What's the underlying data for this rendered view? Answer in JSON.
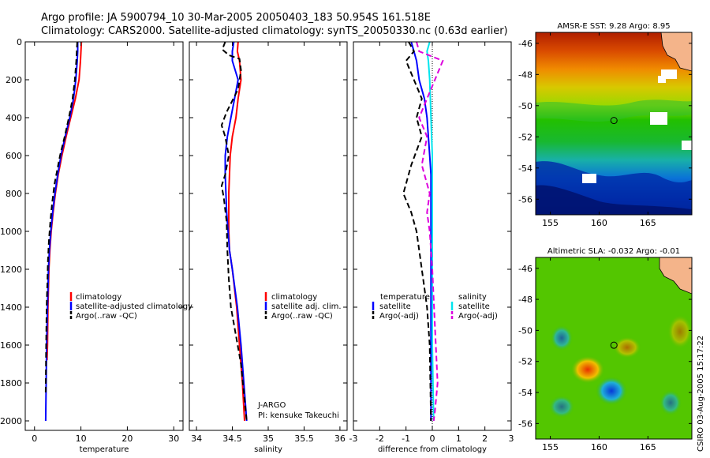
{
  "header": {
    "line1": "Argo profile: JA 5900794_10 30-Mar-2005 20050403_183 50.954S 161.518E",
    "line2": "Climatology: CARS2000. Satellite-adjusted climatology: synTS_20050330.nc (0.63d earlier)"
  },
  "colors": {
    "climatology": "#ff0000",
    "satellite": "#0000ff",
    "argo": "#000000",
    "salinity_sat": "#00e5ee",
    "salinity_argo": "#dd00dd"
  },
  "chart_data": [
    {
      "type": "line",
      "name": "temperature-profile",
      "xlabel": "temperature",
      "xlim": [
        -2,
        32
      ],
      "ylim": [
        0,
        2050
      ],
      "xticks": [
        0,
        10,
        20,
        30
      ],
      "yticks": [
        0,
        200,
        400,
        600,
        800,
        1000,
        1200,
        1400,
        1600,
        1800,
        2000
      ],
      "yaxis_reversed": true,
      "legend": [
        "climatology",
        "satellite-adjusted climatology",
        "Argo(..raw -QC)"
      ],
      "series": [
        {
          "name": "climatology",
          "color": "#ff0000",
          "dash": "",
          "x": [
            10.1,
            10.0,
            9.9,
            9.6,
            8.8,
            7.8,
            6.8,
            5.9,
            5.1,
            4.5,
            4.0,
            3.6,
            3.3,
            3.1,
            2.9,
            2.8,
            2.7
          ],
          "y": [
            0,
            50,
            100,
            200,
            300,
            400,
            500,
            600,
            700,
            800,
            900,
            1000,
            1100,
            1200,
            1400,
            1600,
            1680
          ]
        },
        {
          "name": "satellite-adjusted climatology",
          "color": "#0000ff",
          "dash": "",
          "x": [
            9.3,
            9.3,
            9.2,
            8.9,
            8.4,
            7.6,
            6.6,
            5.7,
            5.0,
            4.4,
            3.9,
            3.5,
            3.2,
            3.0,
            2.8,
            2.6,
            2.5,
            2.4
          ],
          "y": [
            0,
            50,
            100,
            200,
            300,
            400,
            500,
            600,
            700,
            800,
            900,
            1000,
            1100,
            1200,
            1400,
            1600,
            1800,
            2000
          ]
        },
        {
          "name": "Argo(..raw -QC)",
          "color": "#000000",
          "dash": "7,4",
          "x": [
            9.2,
            9.1,
            9.0,
            8.7,
            8.2,
            7.4,
            6.5,
            5.5,
            4.3,
            3.8,
            3.4,
            3.1,
            2.9,
            2.8,
            2.6,
            2.5,
            2.4
          ],
          "y": [
            0,
            50,
            100,
            200,
            300,
            400,
            500,
            600,
            750,
            850,
            950,
            1050,
            1150,
            1250,
            1400,
            1600,
            1850
          ]
        }
      ]
    },
    {
      "type": "line",
      "name": "salinity-profile",
      "xlabel": "salinity",
      "xlim": [
        33.9,
        36.1
      ],
      "ylim": [
        0,
        2050
      ],
      "xticks": [
        34,
        34.5,
        35,
        35.5,
        36
      ],
      "yaxis_reversed": true,
      "legend": [
        "climatology",
        "satellite adj. clim.",
        "Argo(..raw -QC)"
      ],
      "series": [
        {
          "name": "climatology",
          "color": "#ff0000",
          "dash": "",
          "x": [
            34.58,
            34.57,
            34.6,
            34.62,
            34.58,
            34.55,
            34.5,
            34.47,
            34.46,
            34.45,
            34.45,
            34.45,
            34.46,
            34.5,
            34.56,
            34.6,
            34.64,
            34.67
          ],
          "y": [
            0,
            50,
            100,
            200,
            300,
            400,
            500,
            600,
            700,
            800,
            900,
            1000,
            1100,
            1200,
            1400,
            1600,
            1800,
            2000
          ]
        },
        {
          "name": "satellite adj. clim.",
          "color": "#0000ff",
          "dash": "",
          "x": [
            34.52,
            34.5,
            34.5,
            34.58,
            34.53,
            34.48,
            34.43,
            34.4,
            34.4,
            34.41,
            34.42,
            34.44,
            34.46,
            34.5,
            34.57,
            34.62,
            34.66,
            34.7
          ],
          "y": [
            0,
            50,
            100,
            200,
            300,
            400,
            500,
            600,
            700,
            800,
            900,
            1000,
            1100,
            1200,
            1400,
            1600,
            1800,
            2000
          ]
        },
        {
          "name": "Argo(..raw -QC)",
          "color": "#000000",
          "dash": "7,4",
          "x": [
            34.4,
            34.36,
            34.45,
            34.6,
            34.62,
            34.58,
            34.42,
            34.35,
            34.4,
            34.45,
            34.4,
            34.35,
            34.38,
            34.42,
            34.43,
            34.45,
            34.48,
            34.55,
            34.62,
            34.66,
            34.7
          ],
          "y": [
            0,
            40,
            70,
            90,
            150,
            250,
            370,
            440,
            500,
            600,
            700,
            760,
            820,
            950,
            1100,
            1250,
            1400,
            1550,
            1700,
            1850,
            2000
          ]
        }
      ]
    },
    {
      "type": "line",
      "name": "difference-profile",
      "xlabel": "difference from climatology",
      "xlim": [
        -3,
        3
      ],
      "ylim": [
        0,
        2050
      ],
      "xticks": [
        -3,
        -2,
        -1,
        0,
        1,
        2,
        3
      ],
      "yaxis_reversed": true,
      "legend_left": [
        "temperature",
        "satellite",
        "Argo(-adj)"
      ],
      "legend_right": [
        "salinity",
        "satellite",
        "Argo(-adj)"
      ],
      "series": [
        {
          "name": "temperature satellite",
          "color": "#0000ff",
          "dash": "",
          "x": [
            -0.8,
            -0.7,
            -0.6,
            -0.5,
            -0.3,
            -0.2,
            -0.15,
            -0.1,
            -0.05,
            -0.05,
            -0.05,
            -0.05,
            -0.05,
            -0.05,
            -0.05
          ],
          "y": [
            0,
            50,
            100,
            200,
            300,
            400,
            500,
            600,
            700,
            800,
            1000,
            1200,
            1400,
            1700,
            2000
          ]
        },
        {
          "name": "temperature Argo(-adj)",
          "color": "#000000",
          "dash": "7,4",
          "x": [
            -0.9,
            -0.7,
            -1.0,
            -0.7,
            -0.4,
            -0.6,
            -0.4,
            -0.8,
            -1.1,
            -0.8,
            -0.6,
            -0.4,
            -0.2,
            -0.1,
            -0.05
          ],
          "y": [
            0,
            50,
            100,
            200,
            300,
            400,
            500,
            650,
            800,
            900,
            1000,
            1200,
            1400,
            1600,
            2000
          ]
        },
        {
          "name": "salinity satellite",
          "color": "#00e5ee",
          "dash": "",
          "x": [
            -0.1,
            -0.2,
            -0.15,
            -0.1,
            -0.05,
            0.0,
            0.0,
            0.0,
            0.0,
            0.05
          ],
          "y": [
            0,
            50,
            100,
            200,
            400,
            600,
            800,
            1200,
            1600,
            2000
          ]
        },
        {
          "name": "salinity Argo(-adj)",
          "color": "#dd00dd",
          "dash": "7,4",
          "x": [
            -0.6,
            -0.5,
            0.4,
            0.1,
            -0.5,
            -0.2,
            -0.4,
            -0.1,
            -0.2,
            -0.1,
            0.0,
            0.1,
            0.2,
            0.1,
            0.05
          ],
          "y": [
            0,
            50,
            100,
            200,
            400,
            500,
            650,
            800,
            900,
            1000,
            1200,
            1500,
            1800,
            1950,
            2000
          ]
        }
      ]
    },
    {
      "type": "heatmap",
      "name": "sst-map",
      "title": "AMSR-E SST: 9.28 Argo: 8.95",
      "xlim": [
        153.5,
        169.5
      ],
      "ylim": [
        -57,
        -45.3
      ],
      "xticks": [
        155,
        160,
        165
      ],
      "yticks": [
        -46,
        -48,
        -50,
        -52,
        -54,
        -56
      ],
      "marker": {
        "lon": 161.518,
        "lat": -50.954
      }
    },
    {
      "type": "heatmap",
      "name": "sla-map",
      "title": "Altimetric SLA: -0.032 Argo: -0.01",
      "xlim": [
        153.5,
        169.5
      ],
      "ylim": [
        -57,
        -45.3
      ],
      "xticks": [
        155,
        160,
        165
      ],
      "yticks": [
        -46,
        -48,
        -50,
        -52,
        -54,
        -56
      ],
      "marker": {
        "lon": 161.518,
        "lat": -50.954
      }
    }
  ],
  "credit": "CSIRO 03-Aug-2005 15:17:22",
  "annotation": {
    "line1": "J-ARGO",
    "line2": "PI: kensuke Takeuchi"
  }
}
